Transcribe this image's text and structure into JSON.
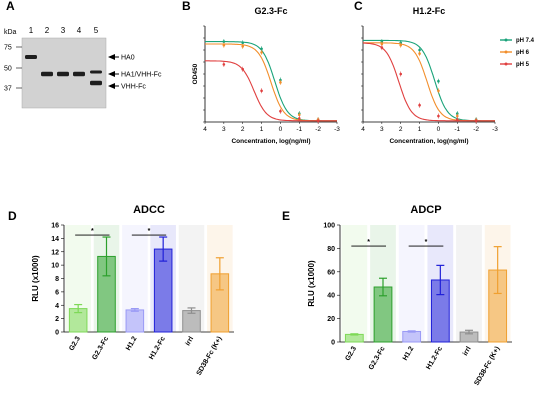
{
  "panels": {
    "A": {
      "letter": "A",
      "kda_label": "kDa",
      "lanes": [
        "1",
        "2",
        "3",
        "4",
        "5"
      ],
      "markers": [
        "75",
        "50",
        "37"
      ],
      "bands": [
        "HA0",
        "HA1/VHH-Fc",
        "VHH-Fc"
      ]
    },
    "B": {
      "letter": "B"
    },
    "C": {
      "letter": "C"
    },
    "D": {
      "letter": "D"
    },
    "E": {
      "letter": "E"
    }
  },
  "chart_data": [
    {
      "type": "line",
      "panel": "B",
      "title": "G2.3-Fc",
      "xlabel": "Concentration, log(ng/ml)",
      "ylabel": "OD450",
      "xlim": [
        4,
        -3
      ],
      "x_ticks": [
        "4",
        "3",
        "2",
        "1",
        "0",
        "-1",
        "-2",
        "-3"
      ],
      "series": [
        {
          "name": "pH 7.4",
          "color": "#1aa37a",
          "top": 3.35,
          "bottom": 0.05,
          "ec50": 0.3,
          "points": [
            [
              3,
              3.35
            ],
            [
              2,
              3.3
            ],
            [
              1,
              3.05
            ],
            [
              0,
              1.75
            ],
            [
              -1,
              0.35
            ],
            [
              -2,
              0.1
            ]
          ]
        },
        {
          "name": "pH 6",
          "color": "#f28e2b",
          "top": 3.25,
          "bottom": 0.05,
          "ec50": 0.5,
          "points": [
            [
              3,
              3.2
            ],
            [
              2,
              3.15
            ],
            [
              1,
              2.9
            ],
            [
              0,
              1.65
            ],
            [
              -1,
              0.3
            ],
            [
              -2,
              0.1
            ]
          ]
        },
        {
          "name": "pH 5",
          "color": "#e04040",
          "top": 2.55,
          "bottom": 0.05,
          "ec50": 1.4,
          "points": [
            [
              3,
              2.4
            ],
            [
              2,
              2.2
            ],
            [
              1,
              1.3
            ],
            [
              0,
              0.45
            ],
            [
              -1,
              0.15
            ],
            [
              -2,
              0.05
            ]
          ]
        }
      ]
    },
    {
      "type": "line",
      "panel": "C",
      "title": "H1.2-Fc",
      "xlabel": "Concentration, log(ng/ml)",
      "ylabel": "",
      "xlim": [
        4,
        -3
      ],
      "x_ticks": [
        "4",
        "3",
        "2",
        "1",
        "0",
        "-1",
        "-2",
        "-3"
      ],
      "legend": [
        "pH 7.4",
        "pH 6",
        "pH 5"
      ],
      "legend_position": "right",
      "series": [
        {
          "name": "pH 7.4",
          "color": "#1aa37a",
          "top": 3.4,
          "bottom": 0.05,
          "ec50": 0.2,
          "points": [
            [
              3,
              3.35
            ],
            [
              2,
              3.3
            ],
            [
              1,
              3.0
            ],
            [
              0,
              1.7
            ],
            [
              -1,
              0.35
            ],
            [
              -2,
              0.1
            ]
          ]
        },
        {
          "name": "pH 6",
          "color": "#f28e2b",
          "top": 3.3,
          "bottom": 0.05,
          "ec50": 0.6,
          "points": [
            [
              3,
              3.25
            ],
            [
              2,
              3.2
            ],
            [
              1,
              2.85
            ],
            [
              0,
              1.3
            ],
            [
              -1,
              0.25
            ],
            [
              -2,
              0.08
            ]
          ]
        },
        {
          "name": "pH 5",
          "color": "#e04040",
          "top": 3.3,
          "bottom": 0.05,
          "ec50": 2.1,
          "points": [
            [
              3,
              3.1
            ],
            [
              2,
              2.0
            ],
            [
              1,
              0.7
            ],
            [
              0,
              0.25
            ],
            [
              -1,
              0.1
            ],
            [
              -2,
              0.05
            ]
          ]
        }
      ]
    },
    {
      "type": "bar",
      "panel": "D",
      "title": "ADCC",
      "ylabel": "RLU (x1000)",
      "ylim": [
        0,
        16
      ],
      "y_ticks": [
        "0",
        "2",
        "4",
        "6",
        "8",
        "10",
        "12",
        "14",
        "16"
      ],
      "categories": [
        "G2.3",
        "G2.3-Fc",
        "H1.2",
        "H1.2-Fc",
        "irrl",
        "SD38-Fc (K+)"
      ],
      "values": [
        3.5,
        11.3,
        3.3,
        12.4,
        3.2,
        8.7
      ],
      "errors": [
        0.6,
        2.9,
        0.2,
        1.8,
        0.4,
        2.4
      ],
      "colors": [
        "#7ed957",
        "#2ca02c",
        "#9a9af5",
        "#2020d8",
        "#8e8e8e",
        "#f0a030"
      ],
      "significance": [
        {
          "from": 0,
          "to": 1,
          "label": "*"
        },
        {
          "from": 2,
          "to": 3,
          "label": "*"
        }
      ]
    },
    {
      "type": "bar",
      "panel": "E",
      "title": "ADCP",
      "ylabel": "RLU (x1000)",
      "ylim": [
        0,
        100
      ],
      "y_ticks": [
        "0",
        "20",
        "40",
        "60",
        "80",
        "100"
      ],
      "categories": [
        "G2.3",
        "G2.3-Fc",
        "H1.2",
        "H1.2-Fc",
        "irrl",
        "SD38-Fc (K+)"
      ],
      "values": [
        6.5,
        47,
        9,
        53,
        8.5,
        61.5
      ],
      "errors": [
        0.5,
        7.5,
        0.5,
        12.5,
        1.5,
        20
      ],
      "colors": [
        "#7ed957",
        "#2ca02c",
        "#9a9af5",
        "#2020d8",
        "#8e8e8e",
        "#f0a030"
      ],
      "significance": [
        {
          "from": 0,
          "to": 1,
          "label": "*"
        },
        {
          "from": 2,
          "to": 3,
          "label": "*"
        }
      ]
    }
  ]
}
